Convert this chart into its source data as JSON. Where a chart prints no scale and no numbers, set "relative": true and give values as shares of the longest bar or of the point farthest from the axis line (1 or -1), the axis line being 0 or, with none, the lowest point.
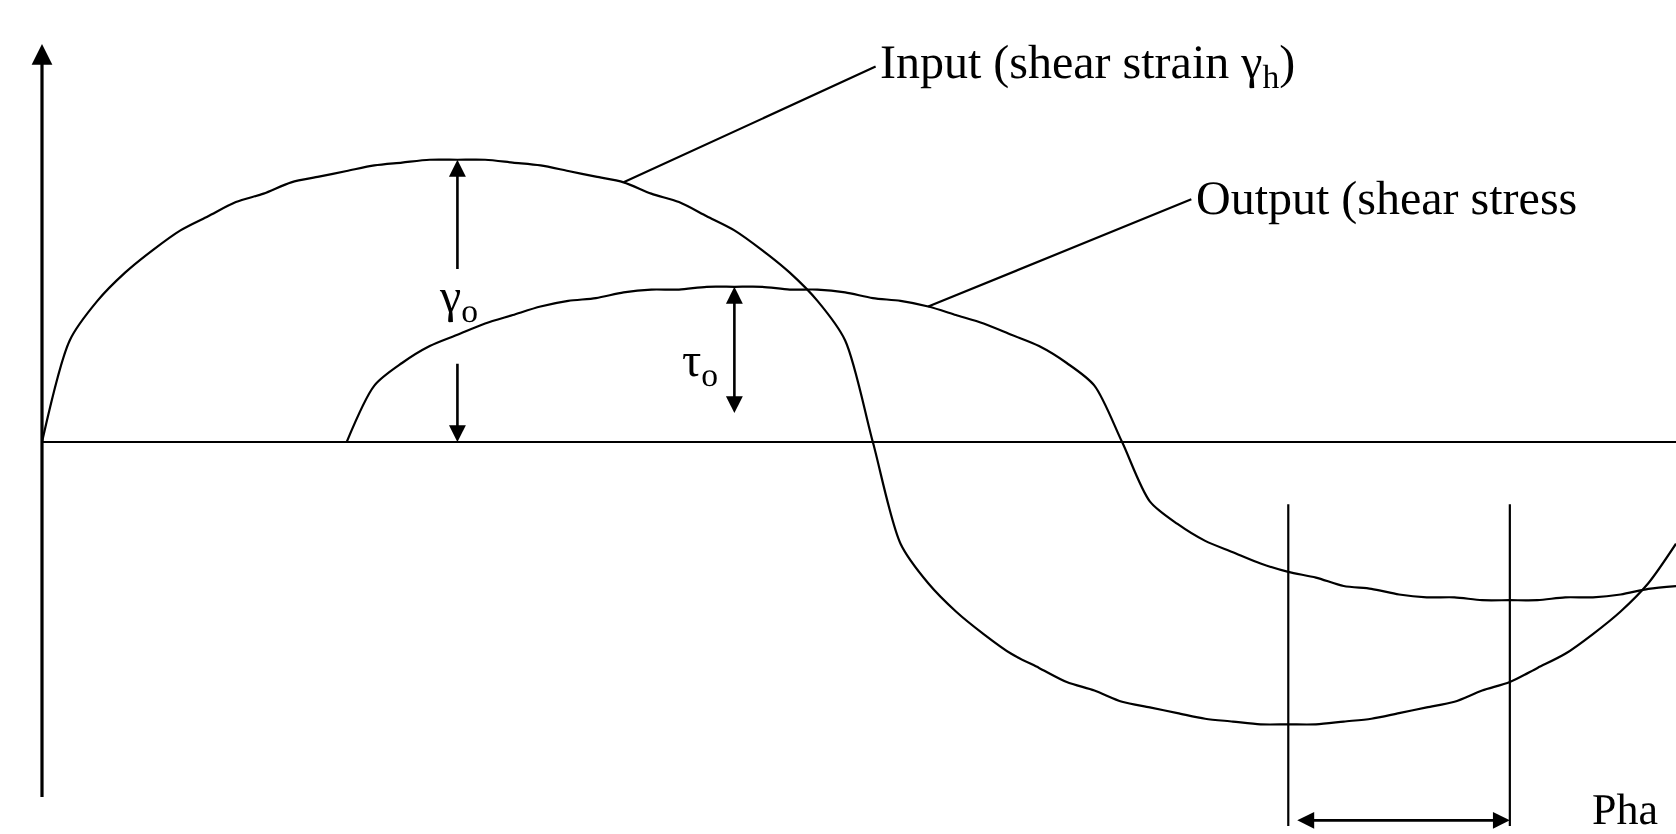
{
  "chart_data": {
    "type": "line",
    "relative": true,
    "line_style": "solid",
    "categories": [
      null,
      null,
      null,
      null,
      null,
      null,
      null,
      null,
      null,
      null,
      null,
      null,
      null,
      null,
      null,
      null,
      null,
      null,
      null,
      null,
      null,
      null,
      null,
      null,
      null,
      null,
      null,
      null,
      null,
      null,
      null,
      null,
      null,
      null,
      null,
      null,
      null,
      null,
      null,
      null,
      null,
      null,
      null,
      null,
      null,
      null,
      null,
      null,
      null,
      null,
      null,
      null,
      null,
      null,
      null,
      null,
      null,
      null,
      null,
      null
    ],
    "series": [
      {
        "name": "Input (shear strain γ$_{h}$)",
        "color": "#000000",
        "values": [
          0,
          0.36,
          0.5,
          0.6,
          0.68,
          0.75,
          0.8,
          0.85,
          0.88,
          0.92,
          0.94,
          0.96,
          0.98,
          0.99,
          1,
          1,
          1,
          0.99,
          0.98,
          0.96,
          0.94,
          0.92,
          0.88,
          0.85,
          0.8,
          0.75,
          0.68,
          0.6,
          0.5,
          0.36,
          0,
          -0.36,
          -0.5,
          -0.6,
          -0.68,
          -0.75,
          -0.8,
          -0.85,
          -0.88,
          -0.92,
          -0.94,
          -0.96,
          -0.98,
          -0.99,
          -1,
          -1,
          -1,
          -0.99,
          -0.98,
          -0.96,
          -0.94,
          -0.92,
          -0.88,
          -0.85,
          -0.8,
          -0.75,
          -0.68,
          -0.6,
          -0.5,
          -0.36
        ]
      },
      {
        "name": "Output (shear stress",
        "color": "#000000",
        "values": [
          null,
          null,
          null,
          null,
          null,
          null,
          null,
          null,
          null,
          null,
          null,
          0,
          0.2,
          0.28,
          0.34,
          0.38,
          0.42,
          0.45,
          0.48,
          0.5,
          0.51,
          0.53,
          0.54,
          0.54,
          0.55,
          0.55,
          0.55,
          0.54,
          0.54,
          0.53,
          0.51,
          0.5,
          0.48,
          0.45,
          0.42,
          0.38,
          0.34,
          0.28,
          0.2,
          0,
          -0.21,
          -0.29,
          -0.35,
          -0.39,
          -0.43,
          -0.46,
          -0.48,
          -0.51,
          -0.52,
          -0.54,
          -0.55,
          -0.55,
          -0.56,
          -0.56,
          -0.56,
          -0.55,
          -0.55,
          -0.54,
          -0.52,
          -0.51
        ]
      }
    ],
    "annotations": [
      {
        "text": "γ$_{o}$",
        "y": 1
      },
      {
        "text": "τ$_{o}$",
        "y": 0.55
      },
      "Pha"
    ]
  }
}
